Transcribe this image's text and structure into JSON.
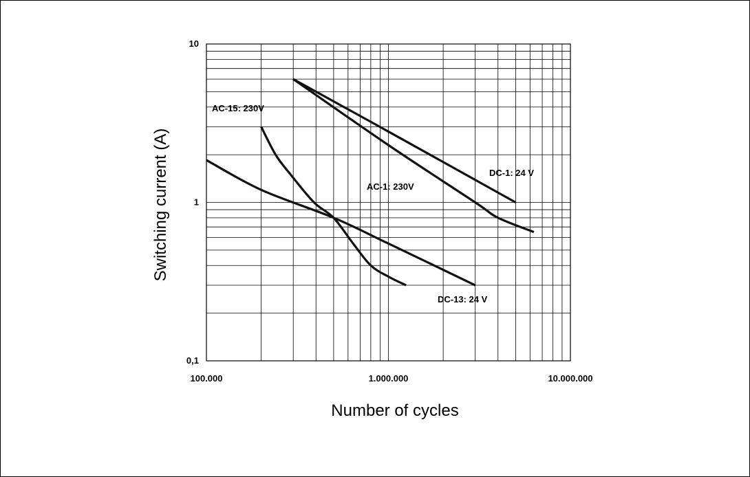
{
  "chart_data": {
    "type": "line",
    "xlabel": "Number of cycles",
    "ylabel": "Switching current (A)",
    "xscale": "log",
    "yscale": "log",
    "xlim": [
      100000,
      10000000
    ],
    "ylim": [
      0.1,
      10
    ],
    "grid": true,
    "legend": "none",
    "x_tick_labels": [
      {
        "value": 100000,
        "label": "100.000"
      },
      {
        "value": 1000000,
        "label": "1.000.000"
      },
      {
        "value": 10000000,
        "label": "10.000.000"
      }
    ],
    "y_tick_labels": [
      {
        "value": 0.1,
        "label": "0,1"
      },
      {
        "value": 1,
        "label": "1"
      },
      {
        "value": 10,
        "label": "10"
      }
    ],
    "series": [
      {
        "name": "AC-15: 230V",
        "label": "AC-15: 230V",
        "points": [
          [
            200000,
            3.0
          ],
          [
            240000,
            2.0
          ],
          [
            290000,
            1.5
          ],
          [
            390000,
            1.0
          ],
          [
            500000,
            0.8
          ],
          [
            640000,
            0.55
          ],
          [
            800000,
            0.4
          ],
          [
            1000000,
            0.34
          ],
          [
            1250000,
            0.3
          ]
        ]
      },
      {
        "name": "DC-13: 24 V",
        "label": "DC-13: 24 V",
        "points": [
          [
            100000,
            1.85
          ],
          [
            200000,
            1.2
          ],
          [
            500000,
            0.8
          ],
          [
            1000000,
            0.55
          ],
          [
            3000000,
            0.3
          ]
        ]
      },
      {
        "name": "AC-1: 230V",
        "label": "AC-1: 230V",
        "points": [
          [
            300000,
            6.0
          ],
          [
            1000000,
            2.3
          ],
          [
            3000000,
            1.0
          ],
          [
            4000000,
            0.8
          ],
          [
            6300000,
            0.65
          ]
        ]
      },
      {
        "name": "DC-1: 24 V",
        "label": "DC-1: 24 V",
        "points": [
          [
            300000,
            6.0
          ],
          [
            1000000,
            2.8
          ],
          [
            5000000,
            1.0
          ]
        ]
      }
    ]
  }
}
